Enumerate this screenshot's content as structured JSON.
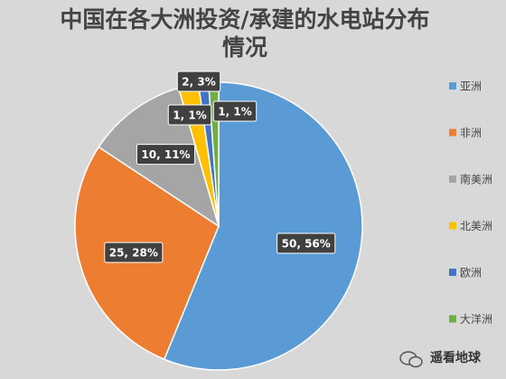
{
  "chart_data": {
    "type": "pie",
    "title": "中国在各大洲投资/承建的水电站分布情况",
    "categories": [
      "亚洲",
      "非洲",
      "南美洲",
      "北美洲",
      "欧洲",
      "大洋洲"
    ],
    "values": [
      50,
      25,
      10,
      2,
      1,
      1
    ],
    "value_labels": [
      "50, 56%",
      "25, 28%",
      "10, 11%",
      "2, 3%",
      "1, 1%",
      "1, 1%"
    ],
    "colors": [
      "#5b9bd5",
      "#ed7d31",
      "#a5a5a5",
      "#ffc000",
      "#4472c4",
      "#70ad47"
    ],
    "legend": "right"
  },
  "watermark": "遥看地球"
}
